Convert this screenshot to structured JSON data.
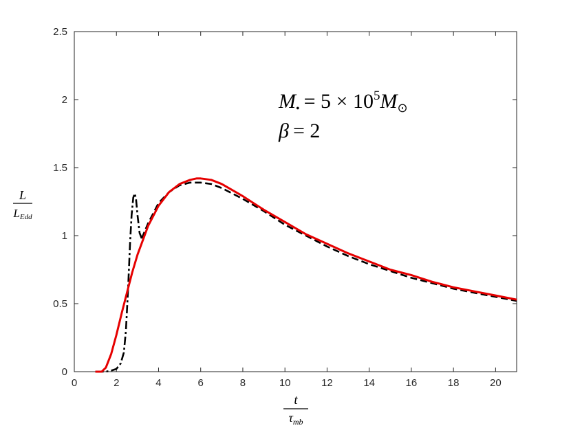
{
  "chart_data": {
    "type": "line",
    "xlim": [
      0,
      21
    ],
    "ylim": [
      0,
      2.5
    ],
    "x_ticks": [
      0,
      2,
      4,
      6,
      8,
      10,
      12,
      14,
      16,
      18,
      20
    ],
    "y_ticks": [
      0,
      0.5,
      1,
      1.5,
      2,
      2.5
    ],
    "x_tick_labels": [
      "0",
      "2",
      "4",
      "6",
      "8",
      "10",
      "12",
      "14",
      "16",
      "18",
      "20"
    ],
    "y_tick_labels": [
      "0",
      "0.5",
      "1",
      "1.5",
      "2",
      "2.5"
    ],
    "xlabel": {
      "numerator": "t",
      "denominator_base": "τ",
      "denominator_sub": "mb"
    },
    "ylabel": {
      "numerator": "L",
      "denominator_base": "L",
      "denominator_sub": "Edd"
    },
    "annotation": {
      "line1": {
        "M": "M",
        "bullet": "•",
        "eq": "= 5 × 10",
        "exp": "5",
        "M2": "M",
        "sun": "⊙"
      },
      "line2": {
        "beta": "β",
        "eq": "= 2"
      }
    },
    "grid": false,
    "legend": "none",
    "series": [
      {
        "style": "dashdot",
        "color": "#000000",
        "x": [
          1.0,
          1.5,
          1.8,
          2.0,
          2.2,
          2.35,
          2.45,
          2.55,
          2.65,
          2.72,
          2.8,
          2.87,
          2.93,
          3.0,
          3.1,
          3.2
        ],
        "y": [
          0.0,
          0.0,
          0.01,
          0.02,
          0.06,
          0.14,
          0.3,
          0.6,
          0.95,
          1.15,
          1.28,
          1.31,
          1.27,
          1.15,
          1.02,
          0.98
        ]
      },
      {
        "style": "dashed",
        "color": "#000000",
        "x": [
          3.2,
          3.5,
          4.0,
          4.5,
          5.0,
          5.5,
          6.0,
          6.5,
          7.0,
          8.0,
          9.0,
          10.0,
          11.0,
          12.0,
          13.0,
          14.0,
          15.0,
          16.0,
          17.0,
          18.0,
          19.0,
          20.0,
          21.0
        ],
        "y": [
          0.98,
          1.09,
          1.24,
          1.32,
          1.37,
          1.39,
          1.39,
          1.38,
          1.35,
          1.27,
          1.18,
          1.08,
          1.0,
          0.92,
          0.85,
          0.79,
          0.74,
          0.69,
          0.65,
          0.61,
          0.58,
          0.55,
          0.52
        ]
      },
      {
        "style": "solid",
        "color": "#e60000",
        "x": [
          1.0,
          1.3,
          1.5,
          1.75,
          2.0,
          2.25,
          2.5,
          2.75,
          3.0,
          3.5,
          4.0,
          4.5,
          5.0,
          5.5,
          5.8,
          6.0,
          6.5,
          7.0,
          8.0,
          9.0,
          10.0,
          11.0,
          12.0,
          13.0,
          14.0,
          15.0,
          16.0,
          17.0,
          18.0,
          19.0,
          20.0,
          21.0
        ],
        "y": [
          0.0,
          0.0,
          0.03,
          0.13,
          0.27,
          0.43,
          0.58,
          0.73,
          0.86,
          1.07,
          1.22,
          1.32,
          1.38,
          1.41,
          1.42,
          1.42,
          1.41,
          1.38,
          1.29,
          1.19,
          1.1,
          1.01,
          0.94,
          0.87,
          0.81,
          0.75,
          0.71,
          0.66,
          0.62,
          0.59,
          0.56,
          0.53
        ]
      }
    ]
  }
}
